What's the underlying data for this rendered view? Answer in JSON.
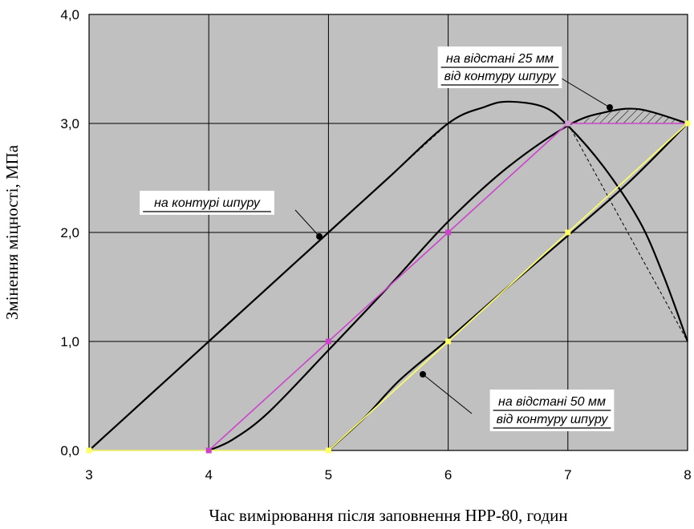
{
  "chart_data": {
    "type": "line",
    "title": "",
    "xlabel": "Час вимірювання після заповнення НРР-80, годин",
    "ylabel": "Змінення міцності,  МПа",
    "xlim": [
      3,
      8
    ],
    "ylim": [
      0,
      4
    ],
    "x_ticks": [
      "3",
      "4",
      "5",
      "6",
      "7",
      "8"
    ],
    "y_ticks": [
      "0,0",
      "1,0",
      "2,0",
      "3,0",
      "4,0"
    ],
    "grid": true,
    "plot_background": "#c0c0c0",
    "annotations": [
      {
        "id": "contour",
        "lines": [
          "на контурі шпуру"
        ]
      },
      {
        "id": "d25",
        "lines": [
          "на відстані 25 мм",
          "від контуру шпуру"
        ]
      },
      {
        "id": "d50",
        "lines": [
          "на відстані 50 мм",
          "від контуру шпуру"
        ]
      }
    ],
    "series": [
      {
        "color": "#000000",
        "style": "solid",
        "x": [
          3,
          3.5,
          4,
          4.5,
          5,
          5.5,
          6,
          6.3,
          6.5,
          6.8,
          7,
          7.3,
          7.6,
          7.8,
          8
        ],
        "y": [
          0,
          0.5,
          1.0,
          1.5,
          2.0,
          2.5,
          3.0,
          3.15,
          3.2,
          3.15,
          2.98,
          2.6,
          2.1,
          1.6,
          1.0
        ]
      },
      {
        "color": "#000000",
        "style": "dashed",
        "x": [
          3,
          4,
          5,
          6,
          7,
          7.5,
          8
        ],
        "y": [
          0,
          1,
          2,
          3,
          3,
          2,
          1
        ]
      },
      {
        "color": "#000000",
        "style": "solid",
        "x": [
          4,
          4.2,
          4.5,
          5,
          5.5,
          6,
          6.5,
          7,
          7.3,
          7.6,
          8
        ],
        "y": [
          0,
          0.1,
          0.35,
          0.92,
          1.5,
          2.1,
          2.6,
          2.98,
          3.1,
          3.13,
          3.0
        ]
      },
      {
        "color": "#cc44cc",
        "style": "solid",
        "x": [
          4,
          5,
          6,
          7,
          8
        ],
        "y": [
          0,
          1,
          2,
          3,
          3
        ]
      },
      {
        "color": "#000000",
        "style": "solid",
        "x": [
          5,
          5.3,
          5.6,
          6,
          6.5,
          7,
          7.5,
          8
        ],
        "y": [
          0,
          0.3,
          0.65,
          1.02,
          1.5,
          1.97,
          2.45,
          3.0
        ]
      },
      {
        "color": "#ffff66",
        "style": "solid",
        "x": [
          3,
          5,
          6,
          7,
          8
        ],
        "y": [
          0,
          0,
          1,
          2,
          3
        ]
      }
    ]
  }
}
